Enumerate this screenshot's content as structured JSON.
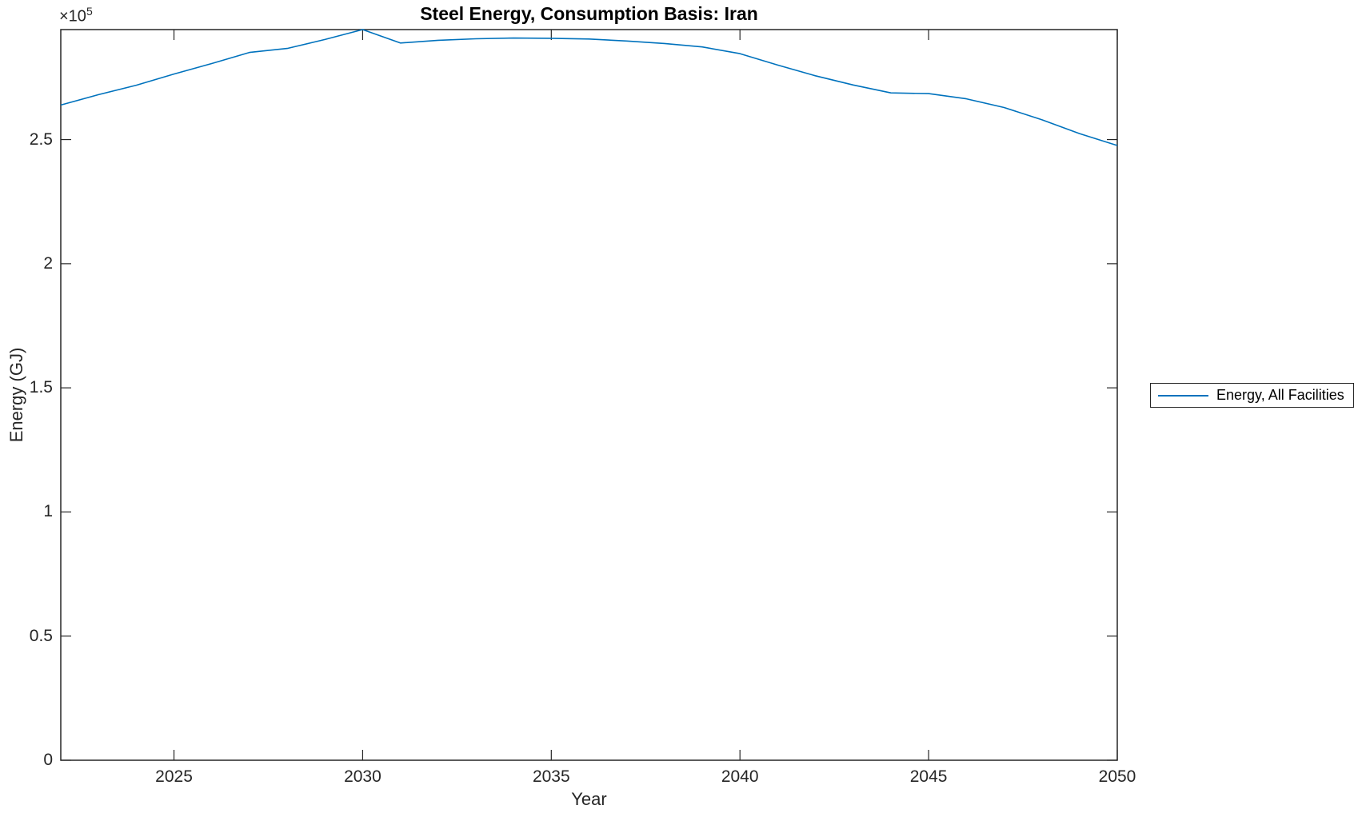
{
  "chart_data": {
    "type": "line",
    "title": "Steel Energy, Consumption Basis: Iran",
    "xlabel": "Year",
    "ylabel": "Energy (GJ)",
    "y_exponent": {
      "base": "×10",
      "power": "5"
    },
    "grid": false,
    "legend_position": "outside-right",
    "axis_color": "#262626",
    "xlim": [
      2022,
      2050
    ],
    "ylim": [
      0,
      294300
    ],
    "x_ticks": [
      2025,
      2030,
      2035,
      2040,
      2045,
      2050
    ],
    "y_ticks": [
      0,
      50000,
      100000,
      150000,
      200000,
      250000
    ],
    "y_tick_labels": [
      "0",
      "0.5",
      "1",
      "1.5",
      "2",
      "2.5"
    ],
    "series": [
      {
        "name": "Energy, All Facilities",
        "color": "#0072BD",
        "x": [
          2022,
          2023,
          2024,
          2025,
          2026,
          2027,
          2028,
          2029,
          2030,
          2031,
          2032,
          2033,
          2034,
          2035,
          2036,
          2037,
          2038,
          2039,
          2040,
          2041,
          2042,
          2043,
          2044,
          2045,
          2046,
          2047,
          2048,
          2049,
          2050
        ],
        "values": [
          263900,
          268100,
          271900,
          276400,
          280600,
          285100,
          286700,
          290300,
          294300,
          288900,
          290000,
          290600,
          290900,
          290800,
          290500,
          289700,
          288700,
          287300,
          284600,
          280000,
          275700,
          272000,
          268800,
          268500,
          266400,
          262900,
          258000,
          252400,
          247600
        ]
      }
    ]
  }
}
